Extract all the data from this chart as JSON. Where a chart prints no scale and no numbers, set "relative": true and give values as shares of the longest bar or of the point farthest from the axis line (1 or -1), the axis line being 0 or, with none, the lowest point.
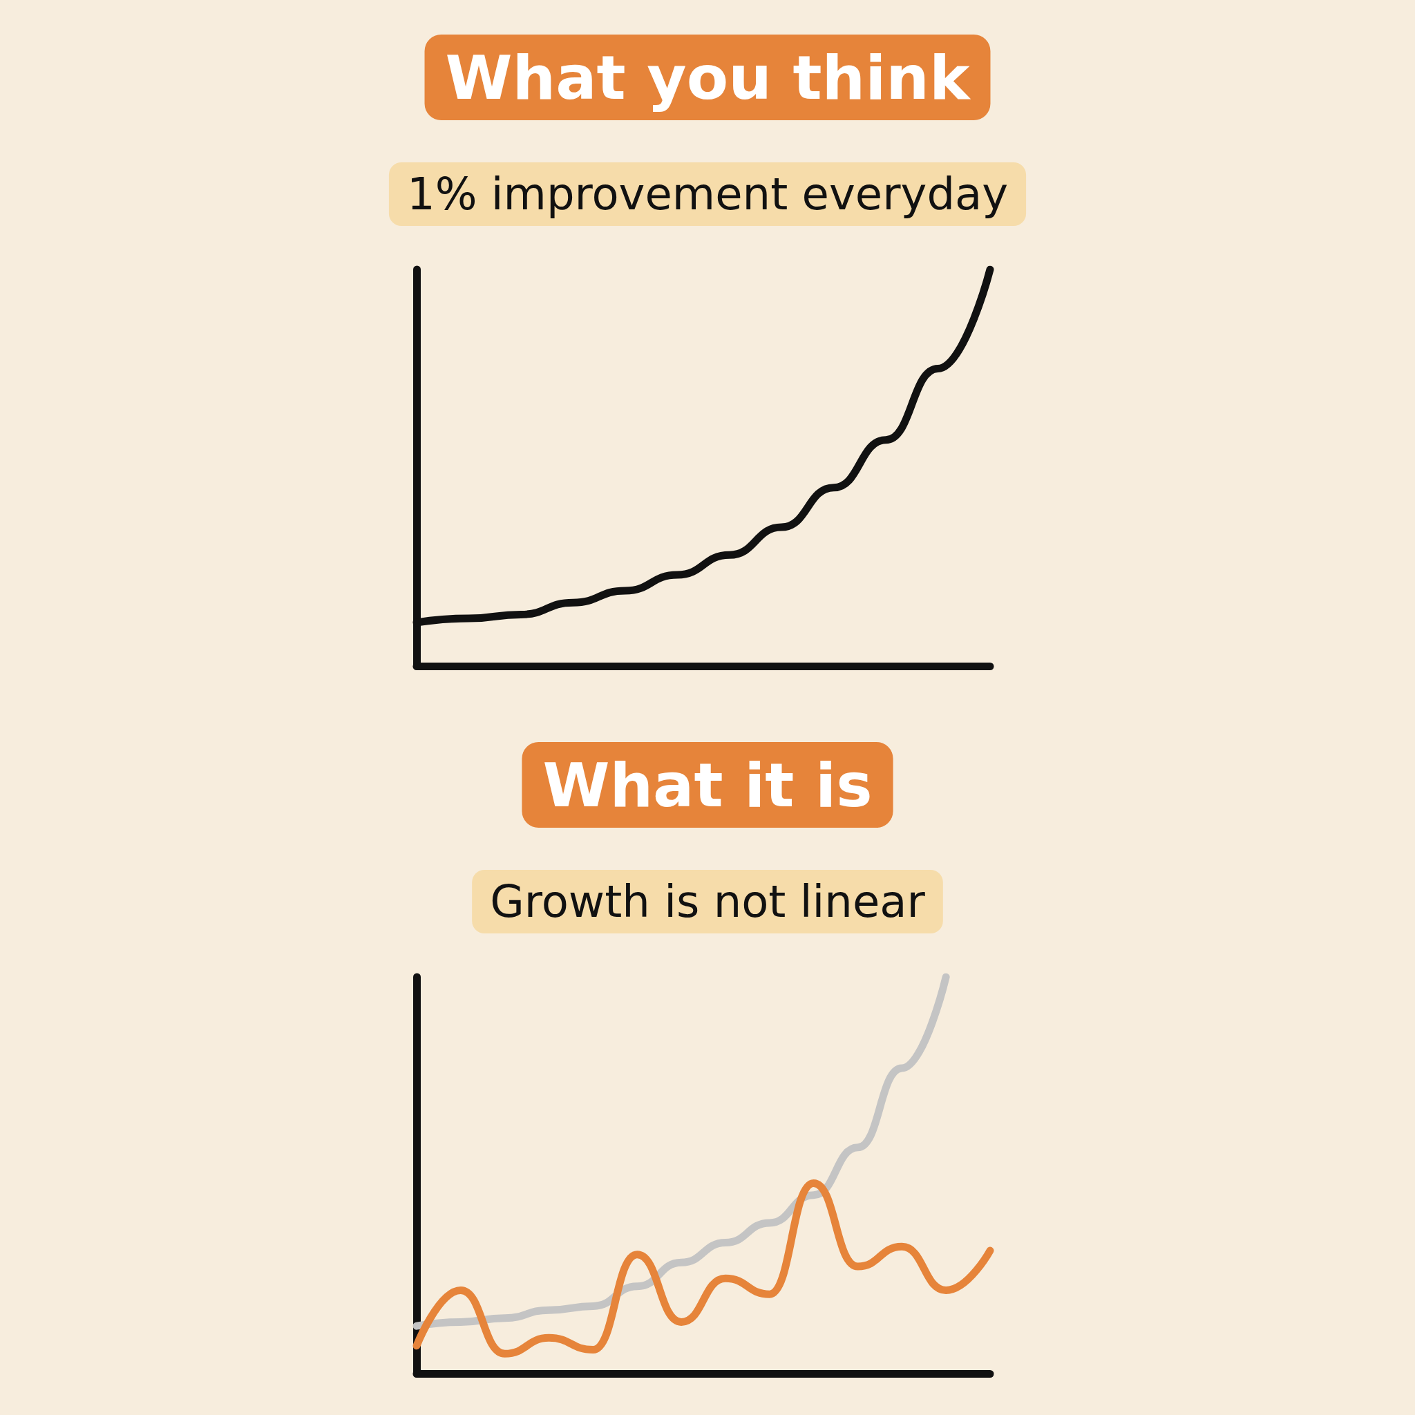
{
  "chart_data": [
    {
      "type": "line",
      "title": "What you think",
      "subtitle": "1% improvement everyday",
      "relative": true,
      "categories": [
        null,
        null,
        null,
        null,
        null,
        null,
        null,
        null,
        null,
        null,
        null,
        null
      ],
      "series": [
        {
          "color": "#111111",
          "values": [
            0.11,
            0.12,
            0.13,
            0.16,
            0.19,
            0.23,
            0.28,
            0.35,
            0.45,
            0.57,
            0.75,
            1
          ]
        }
      ]
    },
    {
      "type": "line",
      "title": "What it is",
      "subtitle": "Growth is not linear",
      "relative": true,
      "categories": [
        null,
        null,
        null,
        null,
        null,
        null,
        null,
        null,
        null,
        null,
        null,
        null,
        null,
        null
      ],
      "series": [
        {
          "color": "#c4c4c4",
          "values": [
            0.12,
            0.13,
            0.14,
            0.16,
            0.17,
            0.22,
            0.28,
            0.33,
            0.38,
            0.45,
            0.57,
            0.77,
            1,
            null
          ]
        },
        {
          "color": "#e6843a",
          "values": [
            0.07,
            0.21,
            0.05,
            0.09,
            0.06,
            0.3,
            0.13,
            0.24,
            0.2,
            0.48,
            0.27,
            0.32,
            0.21,
            0.31
          ]
        }
      ]
    }
  ]
}
